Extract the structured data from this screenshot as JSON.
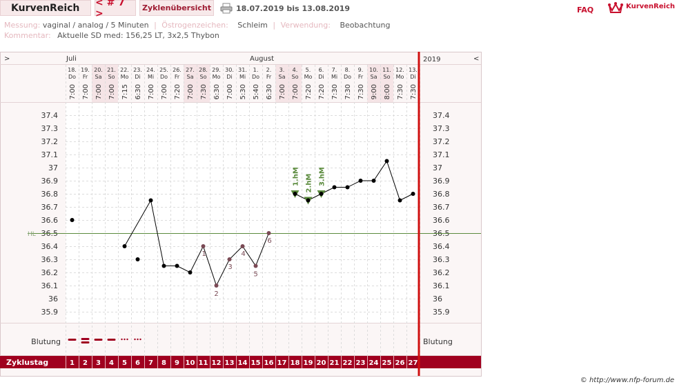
{
  "header": {
    "brand": "KurvenReich",
    "cycle_nav": "< # 7 >",
    "overview_tab": "Zyklenübersicht",
    "date_range": "18.07.2019 bis 13.08.2019",
    "faq": "FAQ",
    "logo_text": "KurvenReich"
  },
  "meta": {
    "messung_label": "Messung:",
    "messung_value": "vaginal / analog / 5 Minuten",
    "oestrogen_label": "Östrogenzeichen:",
    "oestrogen_value": "Schleim",
    "verwendung_label": "Verwendung:",
    "verwendung_value": "Beobachtung",
    "kommentar_label": "Kommentar:",
    "kommentar_value": "Aktuelle SD med: 156,25 LT, 3x2,5 Thybon"
  },
  "footer": {
    "copyright": "© http://www.nfp-forum.de"
  },
  "colors": {
    "accent": "#a0001f",
    "line": "#000000",
    "hl": "#5a8a3c",
    "mark": "#7a4a55",
    "weekend": "#f5e4e6"
  },
  "chart_data": {
    "type": "line",
    "year": "2019",
    "nav_left": ">",
    "nav_right": "<",
    "months": [
      {
        "label": "Juli",
        "day": 1
      },
      {
        "label": "August",
        "day": 15
      }
    ],
    "days": [
      {
        "cd": 1,
        "date": "18.",
        "wd": "Do",
        "time": "7:00",
        "temp": 36.6,
        "bleed": "heavy"
      },
      {
        "cd": 2,
        "date": "19.",
        "wd": "Fr",
        "time": "7:00",
        "temp": null,
        "bleed": "heavy2"
      },
      {
        "cd": 3,
        "date": "20.",
        "wd": "Sa",
        "time": "7:00",
        "temp": null,
        "bleed": "heavy"
      },
      {
        "cd": 4,
        "date": "21.",
        "wd": "So",
        "time": "7:00",
        "temp": null,
        "bleed": "heavy"
      },
      {
        "cd": 5,
        "date": "22.",
        "wd": "Mo",
        "time": "7:15",
        "temp": 36.4,
        "bleed": "spot"
      },
      {
        "cd": 6,
        "date": "23.",
        "wd": "Di",
        "time": "6:30",
        "temp": 36.3,
        "bleed": "spot"
      },
      {
        "cd": 7,
        "date": "24.",
        "wd": "Mi",
        "time": "7:00",
        "temp": 36.75,
        "bleed": ""
      },
      {
        "cd": 8,
        "date": "25.",
        "wd": "Do",
        "time": "7:00",
        "temp": 36.25,
        "bleed": ""
      },
      {
        "cd": 9,
        "date": "26.",
        "wd": "Fr",
        "time": "7:20",
        "temp": 36.25,
        "bleed": ""
      },
      {
        "cd": 10,
        "date": "27.",
        "wd": "Sa",
        "time": "7:00",
        "temp": 36.2,
        "bleed": ""
      },
      {
        "cd": 11,
        "date": "28.",
        "wd": "So",
        "time": "7:30",
        "temp": 36.4,
        "bleed": ""
      },
      {
        "cd": 12,
        "date": "29.",
        "wd": "Mo",
        "time": "6:30",
        "temp": 36.1,
        "bleed": ""
      },
      {
        "cd": 13,
        "date": "30.",
        "wd": "Di",
        "time": "7:00",
        "temp": 36.3,
        "bleed": ""
      },
      {
        "cd": 14,
        "date": "31.",
        "wd": "Mi",
        "time": "5:30",
        "temp": 36.4,
        "bleed": ""
      },
      {
        "cd": 15,
        "date": "1.",
        "wd": "Do",
        "time": "5:40",
        "temp": 36.25,
        "bleed": ""
      },
      {
        "cd": 16,
        "date": "2.",
        "wd": "Fr",
        "time": "6:30",
        "temp": 36.5,
        "bleed": ""
      },
      {
        "cd": 17,
        "date": "3.",
        "wd": "Sa",
        "time": "7:00",
        "temp": null,
        "bleed": ""
      },
      {
        "cd": 18,
        "date": "4.",
        "wd": "So",
        "time": "7:00",
        "temp": 36.8,
        "bleed": ""
      },
      {
        "cd": 19,
        "date": "5.",
        "wd": "Mo",
        "time": "7:20",
        "temp": 36.75,
        "bleed": ""
      },
      {
        "cd": 20,
        "date": "6.",
        "wd": "Di",
        "time": "7:20",
        "temp": 36.8,
        "bleed": ""
      },
      {
        "cd": 21,
        "date": "7.",
        "wd": "Mi",
        "time": "7:30",
        "temp": 36.85,
        "bleed": ""
      },
      {
        "cd": 22,
        "date": "8.",
        "wd": "Do",
        "time": "7:30",
        "temp": 36.85,
        "bleed": ""
      },
      {
        "cd": 23,
        "date": "9.",
        "wd": "Fr",
        "time": "7:30",
        "temp": 36.9,
        "bleed": ""
      },
      {
        "cd": 24,
        "date": "10.",
        "wd": "Sa",
        "time": "9:00",
        "temp": 36.9,
        "bleed": ""
      },
      {
        "cd": 25,
        "date": "11.",
        "wd": "So",
        "time": "8:00",
        "temp": 37.05,
        "bleed": ""
      },
      {
        "cd": 26,
        "date": "12.",
        "wd": "Mo",
        "time": "7:30",
        "temp": 36.75,
        "bleed": ""
      },
      {
        "cd": 27,
        "date": "13.",
        "wd": "Di",
        "time": "7:30",
        "temp": 36.8,
        "bleed": ""
      }
    ],
    "segments": [
      [
        1,
        1
      ],
      [
        5,
        7,
        8,
        9,
        10,
        11,
        12,
        13,
        14,
        15,
        16
      ],
      [
        18,
        19,
        20,
        21,
        22,
        23,
        24,
        25,
        26,
        27
      ]
    ],
    "y_ticks": [
      "37.4",
      "37.3",
      "37.2",
      "37.1",
      "37",
      "36.9",
      "36.8",
      "36.7",
      "36.6",
      "36.5",
      "36.4",
      "36.3",
      "36.2",
      "36.1",
      "36",
      "35.9"
    ],
    "ylim": [
      35.85,
      37.45
    ],
    "hl": {
      "label": "HL",
      "value": 36.5
    },
    "lower_marks": [
      {
        "day": 11,
        "label": "1"
      },
      {
        "day": 12,
        "label": "2"
      },
      {
        "day": 13,
        "label": "3"
      },
      {
        "day": 14,
        "label": "4"
      },
      {
        "day": 15,
        "label": "5"
      },
      {
        "day": 16,
        "label": "6"
      }
    ],
    "high_marks": [
      {
        "day": 18,
        "label": "1.hM"
      },
      {
        "day": 19,
        "label": "2.hM"
      },
      {
        "day": 20,
        "label": "3.hM"
      }
    ],
    "bleeding_label": "Blutung",
    "cycle_label": "Zyklustag"
  }
}
